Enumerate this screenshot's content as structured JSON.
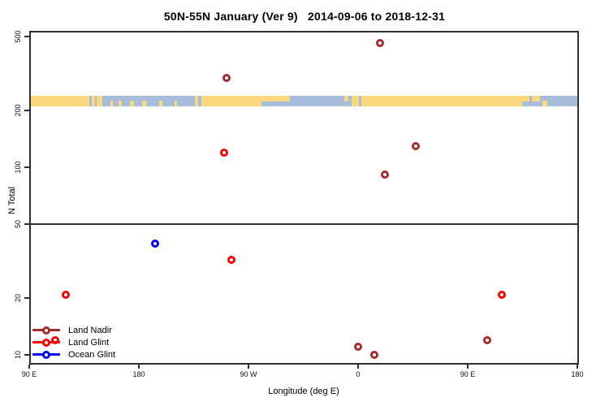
{
  "title": "50N-55N January (Ver 9)   2014-09-06 to 2018-12-31",
  "axes": {
    "x": {
      "label": "Longitude (deg E)",
      "ticks": [
        {
          "deg": 90,
          "label": "90 E"
        },
        {
          "deg": 180,
          "label": "180"
        },
        {
          "deg": 270,
          "label": "90 W"
        },
        {
          "deg": 360,
          "label": "0"
        },
        {
          "deg": 450,
          "label": "90 E"
        },
        {
          "deg": 540,
          "label": "180"
        }
      ]
    },
    "y": {
      "label": "N Total",
      "scale": "log",
      "ticks": [
        {
          "n": 10,
          "label": "10"
        },
        {
          "n": 20,
          "label": "20"
        },
        {
          "n": 50,
          "label": "50"
        },
        {
          "n": 100,
          "label": "100"
        },
        {
          "n": 200,
          "label": "200"
        },
        {
          "n": 500,
          "label": "500"
        }
      ]
    }
  },
  "style": {
    "axis_color": "#2f2f2f",
    "land_nadir_color": "#A52A2A",
    "land_glint_color": "#FF0000",
    "ocean_glint_color": "#0000FF",
    "strip_ocean_color": "#A8BCDC",
    "strip_land_color": "#FED87E"
  },
  "legend": [
    {
      "name": "Land Nadir",
      "color": "#A52A2A"
    },
    {
      "name": "Land Glint",
      "color": "#FF0000"
    },
    {
      "name": "Ocean Glint",
      "color": "#0000FF"
    }
  ],
  "chart_data": {
    "type": "scatter",
    "title": "50N-55N January (Ver 9)   2014-09-06 to 2018-12-31",
    "xlabel": "Longitude (deg E)",
    "ylabel": "N Total",
    "x_axis": {
      "min": 90,
      "max": 540,
      "tick_labels": [
        "90 E",
        "180",
        "90 W",
        "0",
        "90 E",
        "180"
      ],
      "note": "degrees east, wrapping eastward through 180, 90W, 0, 90E, 180"
    },
    "y_axis": {
      "scale": "log",
      "lim": [
        9,
        530
      ],
      "ticks": [
        10,
        20,
        50,
        100,
        200,
        500
      ]
    },
    "reference_line_n": 50,
    "legend_position": "bottom-left",
    "series": [
      {
        "name": "Land Nadir",
        "color": "#A52A2A",
        "points": [
          {
            "lon": 378,
            "lon_label": "18 E",
            "n": 460
          },
          {
            "lon": 252,
            "lon_label": "108 W",
            "n": 300
          },
          {
            "lon": 407,
            "lon_label": "47 E",
            "n": 130
          },
          {
            "lon": 382,
            "lon_label": "22 E",
            "n": 91
          },
          {
            "lon": 466,
            "lon_label": "106 E",
            "n": 12
          },
          {
            "lon": 360,
            "lon_label": "0",
            "n": 11
          },
          {
            "lon": 373,
            "lon_label": "13 E",
            "n": 10
          }
        ]
      },
      {
        "name": "Land Glint",
        "color": "#FF0000",
        "points": [
          {
            "lon": 250,
            "lon_label": "110 W",
            "n": 120
          },
          {
            "lon": 256,
            "lon_label": "104 W",
            "n": 32
          },
          {
            "lon": 120,
            "lon_label": "120 E",
            "n": 21
          },
          {
            "lon": 478,
            "lon_label": "118 E",
            "n": 21
          },
          {
            "lon": 111,
            "lon_label": "111 E",
            "n": 12
          }
        ]
      },
      {
        "name": "Ocean Glint",
        "color": "#0000FF",
        "points": [
          {
            "lon": 193,
            "lon_label": "167 W",
            "n": 39
          }
        ]
      }
    ]
  },
  "map_strip": {
    "band_n_range": [
      211,
      240
    ],
    "land_segments": [
      {
        "from": 90,
        "to": 139.3,
        "part": "full"
      },
      {
        "from": 141.3,
        "to": 144,
        "part": "full"
      },
      {
        "from": 145.3,
        "to": 150,
        "part": "full"
      },
      {
        "from": 156.7,
        "to": 158.7,
        "part": "bottom"
      },
      {
        "from": 163.3,
        "to": 166,
        "part": "bottom"
      },
      {
        "from": 172.7,
        "to": 176,
        "part": "bottom"
      },
      {
        "from": 182.7,
        "to": 186,
        "part": "bottom"
      },
      {
        "from": 196.7,
        "to": 199.3,
        "part": "bottom"
      },
      {
        "from": 209.3,
        "to": 211.3,
        "part": "bottom"
      },
      {
        "from": 226,
        "to": 228.7,
        "part": "full"
      },
      {
        "from": 231.3,
        "to": 280.7,
        "part": "full"
      },
      {
        "from": 280.7,
        "to": 304,
        "part": "top"
      },
      {
        "from": 348.7,
        "to": 352,
        "part": "top"
      },
      {
        "from": 354.7,
        "to": 360.7,
        "part": "full"
      },
      {
        "from": 362.7,
        "to": 494.7,
        "part": "full"
      },
      {
        "from": 494.7,
        "to": 500.7,
        "part": "top"
      },
      {
        "from": 502.7,
        "to": 509.3,
        "part": "top"
      },
      {
        "from": 511,
        "to": 515,
        "part": "bottom"
      }
    ]
  }
}
